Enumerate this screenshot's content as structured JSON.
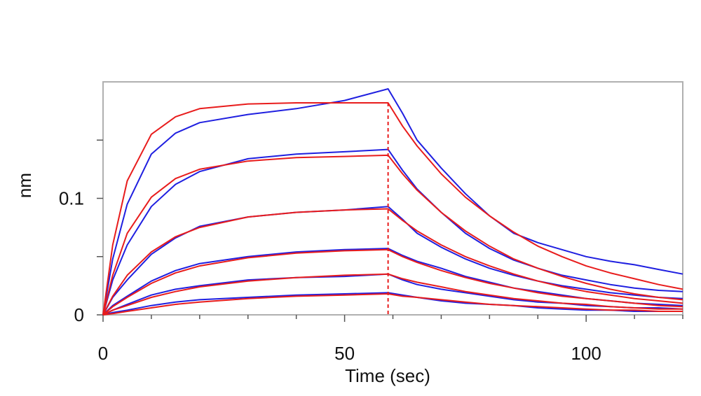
{
  "chart_data": {
    "type": "line",
    "xlabel": "Time (sec)",
    "ylabel": "nm",
    "xlim": [
      0,
      120
    ],
    "ylim": [
      0,
      0.2
    ],
    "x_ticks": [
      0,
      50,
      100
    ],
    "y_ticks": [
      0,
      0.1
    ],
    "dissociation_start_sec": 59,
    "colors": {
      "measured": "#1f1fe0",
      "fit": "#e81c1c",
      "frame": "#b0b0b0"
    },
    "series": [
      {
        "values": [
          [
            0,
            0
          ],
          [
            2,
            0.048
          ],
          [
            5,
            0.095
          ],
          [
            10,
            0.138
          ],
          [
            15,
            0.156
          ],
          [
            20,
            0.165
          ],
          [
            30,
            0.172
          ],
          [
            40,
            0.177
          ],
          [
            50,
            0.184
          ],
          [
            59,
            0.194
          ],
          [
            62,
            0.173
          ],
          [
            65,
            0.15
          ],
          [
            70,
            0.126
          ],
          [
            75,
            0.104
          ],
          [
            80,
            0.085
          ],
          [
            85,
            0.07
          ],
          [
            90,
            0.062
          ],
          [
            95,
            0.056
          ],
          [
            100,
            0.05
          ],
          [
            105,
            0.046
          ],
          [
            110,
            0.043
          ],
          [
            115,
            0.039
          ],
          [
            120,
            0.035
          ]
        ]
      },
      {
        "values": [
          [
            0,
            0
          ],
          [
            2,
            0.03
          ],
          [
            5,
            0.06
          ],
          [
            10,
            0.093
          ],
          [
            15,
            0.112
          ],
          [
            20,
            0.123
          ],
          [
            30,
            0.134
          ],
          [
            40,
            0.138
          ],
          [
            50,
            0.14
          ],
          [
            59,
            0.142
          ],
          [
            62,
            0.124
          ],
          [
            65,
            0.108
          ],
          [
            70,
            0.088
          ],
          [
            75,
            0.07
          ],
          [
            80,
            0.057
          ],
          [
            85,
            0.047
          ],
          [
            90,
            0.04
          ],
          [
            95,
            0.034
          ],
          [
            100,
            0.03
          ],
          [
            105,
            0.026
          ],
          [
            110,
            0.023
          ],
          [
            115,
            0.021
          ],
          [
            120,
            0.02
          ]
        ]
      },
      {
        "values": [
          [
            0,
            0
          ],
          [
            2,
            0.015
          ],
          [
            5,
            0.03
          ],
          [
            10,
            0.052
          ],
          [
            15,
            0.066
          ],
          [
            20,
            0.076
          ],
          [
            30,
            0.084
          ],
          [
            40,
            0.088
          ],
          [
            50,
            0.09
          ],
          [
            59,
            0.093
          ],
          [
            62,
            0.082
          ],
          [
            65,
            0.07
          ],
          [
            70,
            0.058
          ],
          [
            75,
            0.048
          ],
          [
            80,
            0.04
          ],
          [
            85,
            0.034
          ],
          [
            90,
            0.029
          ],
          [
            95,
            0.025
          ],
          [
            100,
            0.022
          ],
          [
            105,
            0.019
          ],
          [
            110,
            0.017
          ],
          [
            115,
            0.015
          ],
          [
            120,
            0.014
          ]
        ]
      },
      {
        "values": [
          [
            0,
            0
          ],
          [
            2,
            0.008
          ],
          [
            5,
            0.016
          ],
          [
            10,
            0.029
          ],
          [
            15,
            0.038
          ],
          [
            20,
            0.044
          ],
          [
            30,
            0.05
          ],
          [
            40,
            0.054
          ],
          [
            50,
            0.056
          ],
          [
            59,
            0.057
          ],
          [
            62,
            0.051
          ],
          [
            65,
            0.046
          ],
          [
            70,
            0.04
          ],
          [
            75,
            0.033
          ],
          [
            80,
            0.028
          ],
          [
            85,
            0.023
          ],
          [
            90,
            0.02
          ],
          [
            95,
            0.017
          ],
          [
            100,
            0.014
          ],
          [
            105,
            0.012
          ],
          [
            110,
            0.01
          ],
          [
            115,
            0.009
          ],
          [
            120,
            0.008
          ]
        ]
      },
      {
        "values": [
          [
            0,
            0
          ],
          [
            2,
            0.004
          ],
          [
            5,
            0.009
          ],
          [
            10,
            0.017
          ],
          [
            15,
            0.022
          ],
          [
            20,
            0.025
          ],
          [
            30,
            0.03
          ],
          [
            40,
            0.032
          ],
          [
            50,
            0.033
          ],
          [
            59,
            0.035
          ],
          [
            62,
            0.03
          ],
          [
            65,
            0.026
          ],
          [
            70,
            0.022
          ],
          [
            75,
            0.019
          ],
          [
            80,
            0.016
          ],
          [
            85,
            0.013
          ],
          [
            90,
            0.011
          ],
          [
            95,
            0.01
          ],
          [
            100,
            0.008
          ],
          [
            105,
            0.007
          ],
          [
            110,
            0.006
          ],
          [
            115,
            0.006
          ],
          [
            120,
            0.005
          ]
        ]
      },
      {
        "values": [
          [
            0,
            0
          ],
          [
            2,
            0.002
          ],
          [
            5,
            0.004
          ],
          [
            10,
            0.008
          ],
          [
            15,
            0.011
          ],
          [
            20,
            0.013
          ],
          [
            30,
            0.015
          ],
          [
            40,
            0.017
          ],
          [
            50,
            0.018
          ],
          [
            59,
            0.019
          ],
          [
            62,
            0.017
          ],
          [
            65,
            0.015
          ],
          [
            70,
            0.012
          ],
          [
            75,
            0.01
          ],
          [
            80,
            0.009
          ],
          [
            85,
            0.008
          ],
          [
            90,
            0.006
          ],
          [
            95,
            0.005
          ],
          [
            100,
            0.004
          ],
          [
            105,
            0.004
          ],
          [
            110,
            0.003
          ],
          [
            115,
            0.003
          ],
          [
            120,
            0.003
          ]
        ]
      }
    ],
    "fit_series": [
      {
        "values": [
          [
            0,
            0
          ],
          [
            2,
            0.06
          ],
          [
            5,
            0.115
          ],
          [
            10,
            0.155
          ],
          [
            15,
            0.17
          ],
          [
            20,
            0.177
          ],
          [
            30,
            0.181
          ],
          [
            40,
            0.182
          ],
          [
            50,
            0.182
          ],
          [
            59,
            0.182
          ],
          [
            62,
            0.162
          ],
          [
            65,
            0.145
          ],
          [
            70,
            0.121
          ],
          [
            75,
            0.101
          ],
          [
            80,
            0.085
          ],
          [
            85,
            0.071
          ],
          [
            90,
            0.059
          ],
          [
            95,
            0.05
          ],
          [
            100,
            0.042
          ],
          [
            105,
            0.036
          ],
          [
            110,
            0.031
          ],
          [
            115,
            0.026
          ],
          [
            120,
            0.022
          ]
        ]
      },
      {
        "values": [
          [
            0,
            0
          ],
          [
            2,
            0.034
          ],
          [
            5,
            0.07
          ],
          [
            10,
            0.101
          ],
          [
            15,
            0.117
          ],
          [
            20,
            0.125
          ],
          [
            30,
            0.132
          ],
          [
            40,
            0.135
          ],
          [
            50,
            0.136
          ],
          [
            59,
            0.137
          ],
          [
            62,
            0.121
          ],
          [
            65,
            0.107
          ],
          [
            70,
            0.088
          ],
          [
            75,
            0.072
          ],
          [
            80,
            0.059
          ],
          [
            85,
            0.048
          ],
          [
            90,
            0.04
          ],
          [
            95,
            0.033
          ],
          [
            100,
            0.027
          ],
          [
            105,
            0.022
          ],
          [
            110,
            0.018
          ],
          [
            115,
            0.015
          ],
          [
            120,
            0.013
          ]
        ]
      },
      {
        "values": [
          [
            0,
            0
          ],
          [
            2,
            0.016
          ],
          [
            5,
            0.034
          ],
          [
            10,
            0.054
          ],
          [
            15,
            0.067
          ],
          [
            20,
            0.075
          ],
          [
            30,
            0.084
          ],
          [
            40,
            0.088
          ],
          [
            50,
            0.09
          ],
          [
            59,
            0.091
          ],
          [
            62,
            0.081
          ],
          [
            65,
            0.072
          ],
          [
            70,
            0.06
          ],
          [
            75,
            0.05
          ],
          [
            80,
            0.042
          ],
          [
            85,
            0.035
          ],
          [
            90,
            0.029
          ],
          [
            95,
            0.024
          ],
          [
            100,
            0.02
          ],
          [
            105,
            0.017
          ],
          [
            110,
            0.014
          ],
          [
            115,
            0.012
          ],
          [
            120,
            0.01
          ]
        ]
      },
      {
        "values": [
          [
            0,
            0
          ],
          [
            2,
            0.007
          ],
          [
            5,
            0.015
          ],
          [
            10,
            0.027
          ],
          [
            15,
            0.036
          ],
          [
            20,
            0.042
          ],
          [
            30,
            0.049
          ],
          [
            40,
            0.053
          ],
          [
            50,
            0.055
          ],
          [
            59,
            0.056
          ],
          [
            62,
            0.05
          ],
          [
            65,
            0.045
          ],
          [
            70,
            0.038
          ],
          [
            75,
            0.032
          ],
          [
            80,
            0.027
          ],
          [
            85,
            0.023
          ],
          [
            90,
            0.019
          ],
          [
            95,
            0.016
          ],
          [
            100,
            0.014
          ],
          [
            105,
            0.012
          ],
          [
            110,
            0.01
          ],
          [
            115,
            0.008
          ],
          [
            120,
            0.007
          ]
        ]
      },
      {
        "values": [
          [
            0,
            0
          ],
          [
            2,
            0.004
          ],
          [
            5,
            0.008
          ],
          [
            10,
            0.015
          ],
          [
            15,
            0.02
          ],
          [
            20,
            0.024
          ],
          [
            30,
            0.029
          ],
          [
            40,
            0.032
          ],
          [
            50,
            0.034
          ],
          [
            59,
            0.035
          ],
          [
            62,
            0.031
          ],
          [
            65,
            0.028
          ],
          [
            70,
            0.024
          ],
          [
            75,
            0.02
          ],
          [
            80,
            0.017
          ],
          [
            85,
            0.014
          ],
          [
            90,
            0.012
          ],
          [
            95,
            0.01
          ],
          [
            100,
            0.009
          ],
          [
            105,
            0.007
          ],
          [
            110,
            0.006
          ],
          [
            115,
            0.005
          ],
          [
            120,
            0.005
          ]
        ]
      },
      {
        "values": [
          [
            0,
            0
          ],
          [
            2,
            0.001
          ],
          [
            5,
            0.003
          ],
          [
            10,
            0.006
          ],
          [
            15,
            0.009
          ],
          [
            20,
            0.011
          ],
          [
            30,
            0.014
          ],
          [
            40,
            0.016
          ],
          [
            50,
            0.017
          ],
          [
            59,
            0.018
          ],
          [
            62,
            0.016
          ],
          [
            65,
            0.015
          ],
          [
            70,
            0.013
          ],
          [
            75,
            0.011
          ],
          [
            80,
            0.009
          ],
          [
            85,
            0.008
          ],
          [
            90,
            0.007
          ],
          [
            95,
            0.006
          ],
          [
            100,
            0.005
          ],
          [
            105,
            0.004
          ],
          [
            110,
            0.004
          ],
          [
            115,
            0.003
          ],
          [
            120,
            0.003
          ]
        ]
      }
    ]
  }
}
